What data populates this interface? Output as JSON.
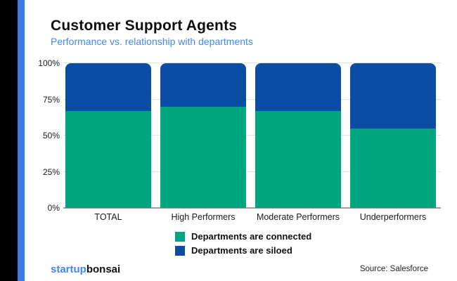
{
  "page": {
    "title": "Customer Support Agents",
    "subtitle": "Performance vs. relationship with departments",
    "logo_part1": "startup",
    "logo_part2": "bonsai",
    "source": "Source: Salesforce"
  },
  "colors": {
    "connected_green": "#00a77e",
    "siloed_blue": "#0a4da4",
    "accent_stripe_blue": "#3c7de9",
    "subtitle_blue": "#4285f4",
    "gridline_gray": "#e2e2e2",
    "axis_gray": "#9e9e9e"
  },
  "chart_data": {
    "type": "bar",
    "stacked": true,
    "percent_stacked": true,
    "title": "Customer Support Agents",
    "subtitle": "Performance vs. relationship with departments",
    "categories": [
      "TOTAL",
      "High Performers",
      "Moderate Performers",
      "Underperformers"
    ],
    "series": [
      {
        "name": "Departments are connected",
        "color": "#00a77e",
        "values": [
          67,
          70,
          67,
          55
        ]
      },
      {
        "name": "Departments are siloed",
        "color": "#0a4da4",
        "values": [
          33,
          30,
          33,
          45
        ]
      }
    ],
    "y_ticks": [
      0,
      25,
      50,
      75,
      100
    ],
    "y_tick_labels": [
      "0%",
      "25%",
      "50%",
      "75%",
      "100%"
    ],
    "ylim": [
      0,
      100
    ],
    "unit": "%",
    "grid": true,
    "legend_position": "bottom"
  }
}
